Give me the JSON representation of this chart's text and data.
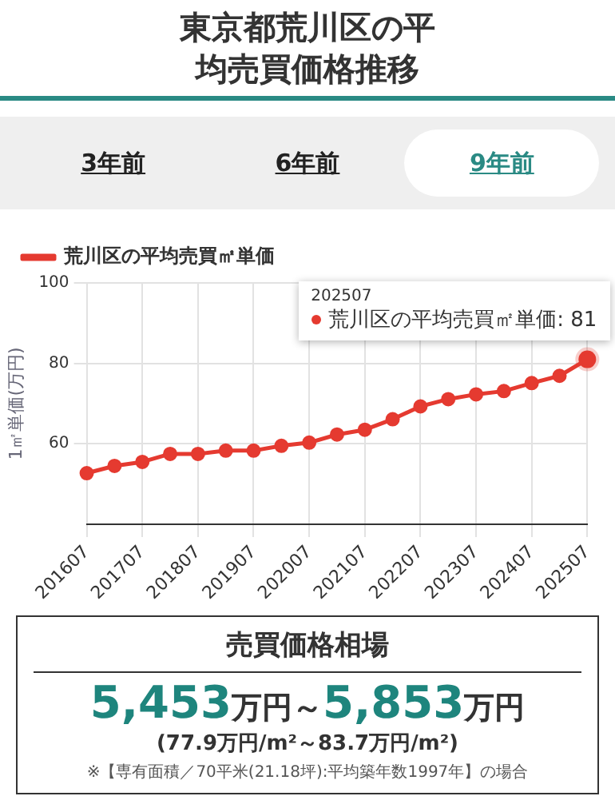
{
  "chart_data": [
    {
      "type": "line",
      "title": "東京都荒川区の平均売買価格推移",
      "ylabel": "1㎡単価(万円)",
      "categories": [
        "201607",
        null,
        "201707",
        null,
        "201807",
        null,
        "201907",
        null,
        "202007",
        null,
        "202107",
        null,
        "202207",
        null,
        "202307",
        null,
        "202407",
        null,
        "202507"
      ],
      "series": [
        {
          "name": "荒川区の平均売買㎡単価",
          "color": "#e53a30",
          "values": [
            52.7,
            54.5,
            55.5,
            57.5,
            57.5,
            58.3,
            58.3,
            59.5,
            60.3,
            62.3,
            63.5,
            66.1,
            69.3,
            71.1,
            72.3,
            73.1,
            75.1,
            76.9,
            81
          ]
        }
      ],
      "ylim": [
        40,
        100
      ],
      "yticks": [
        60,
        80,
        100
      ],
      "grid": true,
      "legend": "top left",
      "marker": "circle",
      "line_style": "solid",
      "annotations": [
        "3年前",
        "6年前",
        "9年前",
        {
          "text": "202507\n荒川区の平均売買㎡単価: 81",
          "x": "202507",
          "y": 81
        }
      ]
    },
    {
      "type": "other",
      "title": "売買価格相場",
      "annotations": [
        "5,453万円～5,853万円",
        "(77.9万円/m²～83.7万円/m²)",
        "※【専有面積／70平米(21.18坪):平均築年数1997年】の場合"
      ]
    }
  ]
}
